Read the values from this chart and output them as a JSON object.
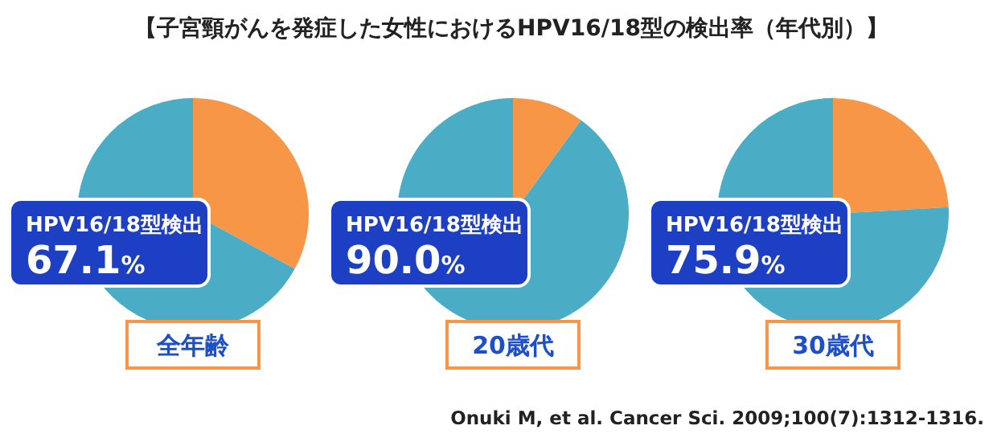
{
  "chart_data": [
    {
      "type": "pie",
      "title": "【子宮頸がんを発症した女性におけるHPV16/18型の検出率（年代別）】",
      "xlabel": "全年齢",
      "categories": [
        null,
        "HPV16/18型検出"
      ],
      "values": [
        32.9,
        67.1
      ],
      "colors": [
        "#f79646",
        "#4bacc6"
      ],
      "value_labels": [
        null,
        "67.1%"
      ]
    },
    {
      "type": "pie",
      "xlabel": "20歳代",
      "categories": [
        null,
        "HPV16/18型検出"
      ],
      "values": [
        10.0,
        90.0
      ],
      "colors": [
        "#f79646",
        "#4bacc6"
      ],
      "value_labels": [
        null,
        "90.0%"
      ]
    },
    {
      "type": "pie",
      "xlabel": "30歳代",
      "categories": [
        null,
        "HPV16/18型検出"
      ],
      "values": [
        24.1,
        75.9
      ],
      "colors": [
        "#f79646",
        "#4bacc6"
      ],
      "value_labels": [
        null,
        "75.9%"
      ],
      "annotations": [
        "Onuki M, et al. Cancer Sci. 2009;100(7):1312-1316."
      ]
    }
  ]
}
